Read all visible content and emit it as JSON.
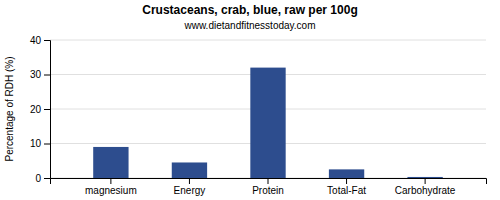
{
  "chart_data": {
    "type": "bar",
    "title": "Crustaceans, crab, blue, raw per 100g",
    "subtitle": "www.dietandfitnesstoday.com",
    "categories": [
      "magnesium",
      "Energy",
      "Protein",
      "Total-Fat",
      "Carbohydrate"
    ],
    "values": [
      9.0,
      4.5,
      32.0,
      2.5,
      0.3
    ],
    "color": "#2d4d8e",
    "ylabel": "Percentage of RDH (%)",
    "ylim": [
      0,
      40
    ],
    "yticks": [
      0,
      10,
      20,
      30,
      40
    ],
    "grid": true
  }
}
